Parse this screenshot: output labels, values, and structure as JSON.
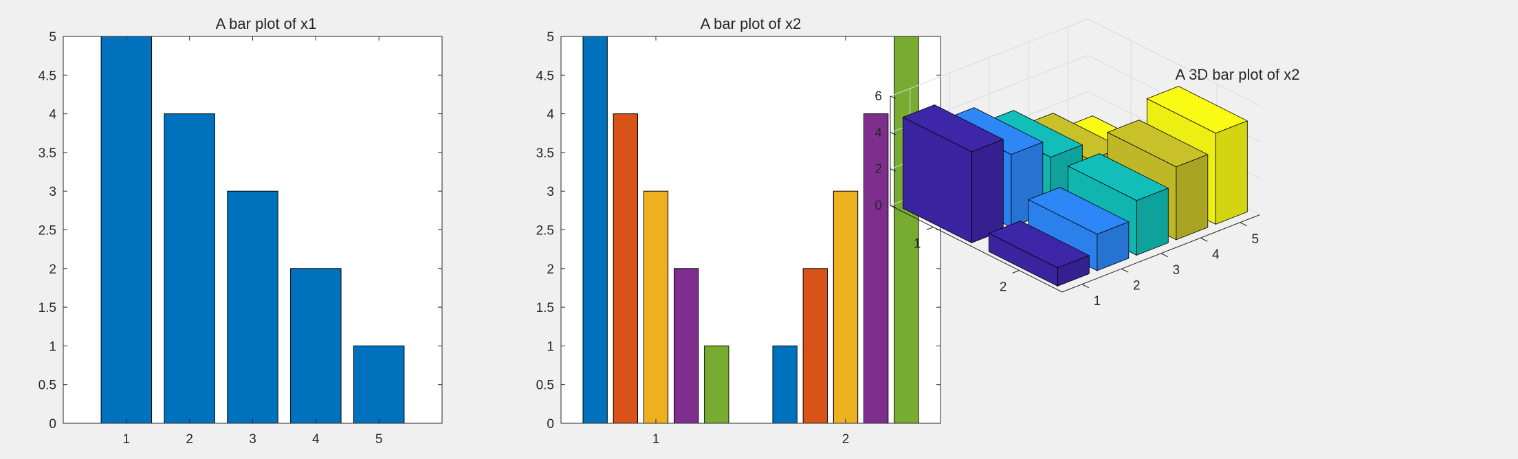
{
  "figure": {
    "background": "#f0f0f0"
  },
  "chart_data": [
    {
      "type": "bar",
      "title": "A bar plot of x1",
      "categories": [
        "1",
        "2",
        "3",
        "4",
        "5"
      ],
      "values": [
        5,
        4,
        3,
        2,
        1
      ],
      "ylim": [
        0,
        5
      ],
      "yticks": [
        "0",
        "0.5",
        "1",
        "1.5",
        "2",
        "2.5",
        "3",
        "3.5",
        "4",
        "4.5",
        "5"
      ],
      "color": "#0072bd",
      "grid": false,
      "legend": "none"
    },
    {
      "type": "bar",
      "title": "A bar plot of x2",
      "categories": [
        "1",
        "2"
      ],
      "series": [
        {
          "values": [
            5,
            1
          ],
          "color": "#0072bd"
        },
        {
          "values": [
            4,
            2
          ],
          "color": "#d95319"
        },
        {
          "values": [
            3,
            3
          ],
          "color": "#edb120"
        },
        {
          "values": [
            2,
            4
          ],
          "color": "#7e2f8e"
        },
        {
          "values": [
            1,
            5
          ],
          "color": "#77ac30"
        }
      ],
      "ylim": [
        0,
        5
      ],
      "yticks": [
        "0",
        "0.5",
        "1",
        "1.5",
        "2",
        "2.5",
        "3",
        "3.5",
        "4",
        "4.5",
        "5"
      ],
      "grid": false,
      "legend": "none"
    },
    {
      "type": "bar3",
      "title": "A 3D bar plot of x2",
      "columns": [
        "1",
        "2",
        "3",
        "4",
        "5"
      ],
      "rows": [
        "1",
        "2"
      ],
      "values": [
        [
          5,
          4,
          3,
          2,
          1
        ],
        [
          1,
          2,
          3,
          4,
          5
        ]
      ],
      "zlim": [
        0,
        6
      ],
      "zticks": [
        "0",
        "2",
        "4",
        "6"
      ],
      "colors": [
        "#3e26a8",
        "#2e87f7",
        "#12beb9",
        "#c8c12a",
        "#f9fb15"
      ],
      "grid": true,
      "legend": "none"
    }
  ]
}
